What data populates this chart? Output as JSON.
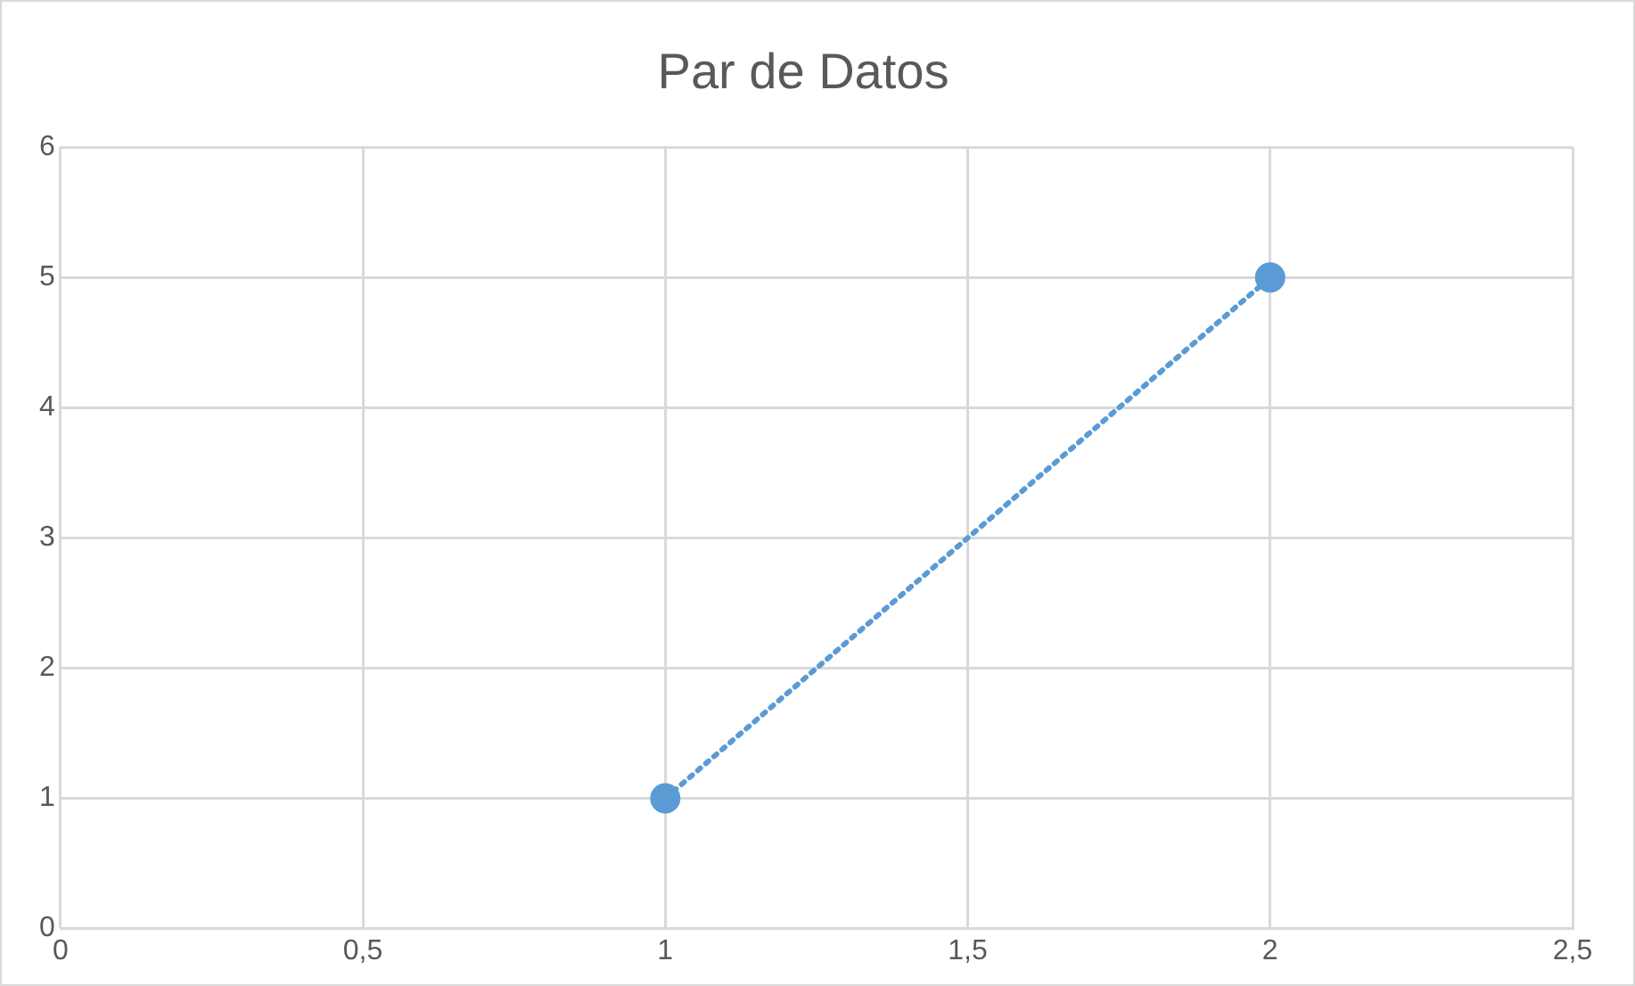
{
  "chart_data": {
    "type": "line",
    "title": "Par de Datos",
    "x": [
      1,
      2
    ],
    "series": [
      {
        "color": "#5b9bd5",
        "values": [
          1,
          5
        ]
      }
    ],
    "xlim": [
      0,
      2.5
    ],
    "xticks": [
      0,
      {
        "value": 0.5,
        "label": "0,5"
      },
      1,
      {
        "value": 1.5,
        "label": "1,5"
      },
      2,
      {
        "value": 2.5,
        "label": "2,5"
      }
    ],
    "ylim": [
      0,
      6
    ],
    "yticks": [
      0,
      1,
      2,
      3,
      4,
      5,
      6
    ],
    "grid": true,
    "legend": false,
    "marker": "circle",
    "line_style": "dotted"
  }
}
